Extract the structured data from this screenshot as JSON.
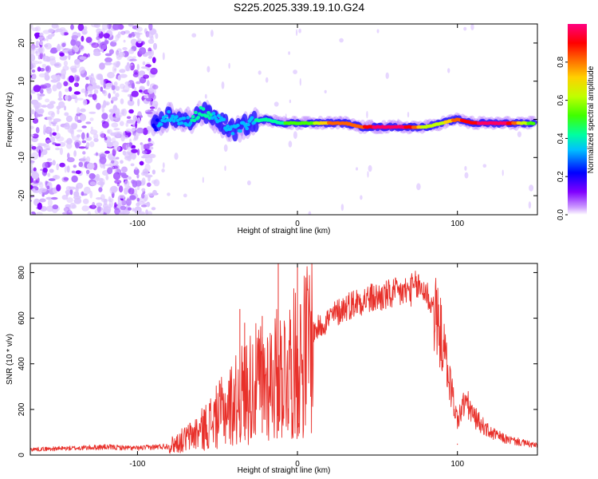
{
  "figure": {
    "title": "S225.2025.339.19.10.G24"
  },
  "chart_data": [
    {
      "type": "heatmap",
      "xlabel": "Height of straight line (km)",
      "ylabel": "Frequency (Hz)",
      "xlim": [
        -167,
        150
      ],
      "ylim": [
        -25,
        25
      ],
      "xticks": [
        -100,
        0,
        100
      ],
      "yticks": [
        -20,
        -10,
        0,
        10,
        20
      ],
      "colorbar": {
        "label": "Normalized spectral amplitude",
        "range": [
          0,
          1
        ],
        "ticks": [
          0.0,
          0.2,
          0.4,
          0.6,
          0.8
        ],
        "colormap": [
          "#cc99ff",
          "#8000ff",
          "#0000ff",
          "#00c0ff",
          "#00ffa0",
          "#40ff00",
          "#c0ff00",
          "#ffd000",
          "#ff6000",
          "#ff0000",
          "#ff0060",
          "#ff0090"
        ]
      },
      "ridge": {
        "x": [
          -90,
          -80,
          -70,
          -60,
          -50,
          -40,
          -30,
          -20,
          -10,
          0,
          10,
          20,
          30,
          40,
          50,
          60,
          70,
          80,
          90,
          100,
          110,
          120,
          130,
          140,
          148
        ],
        "frequency": [
          -2,
          1,
          -1,
          2,
          0,
          -3,
          -1,
          0,
          -1,
          -1,
          -1,
          -1,
          -1,
          -2,
          -2,
          -2,
          -2,
          -2,
          -1,
          0,
          -1,
          -1,
          -1,
          -1,
          -1
        ],
        "amplitude": [
          0.2,
          0.3,
          0.3,
          0.35,
          0.3,
          0.3,
          0.3,
          0.35,
          0.4,
          0.45,
          0.5,
          0.7,
          0.7,
          0.75,
          0.9,
          0.9,
          0.85,
          0.5,
          0.55,
          0.75,
          0.85,
          0.9,
          0.9,
          0.6,
          0.4
        ]
      },
      "noise_region_x": [
        -167,
        -85
      ]
    },
    {
      "type": "line",
      "xlabel": "Height of straight line (km)",
      "ylabel": "SNR (10 * v/v)",
      "xlim": [
        -167,
        150
      ],
      "ylim": [
        0,
        840
      ],
      "xticks": [
        -100,
        0,
        100
      ],
      "yticks": [
        0,
        200,
        400,
        600,
        800
      ],
      "color": "#e8302a",
      "envelope": {
        "x": [
          -167,
          -140,
          -120,
          -100,
          -80,
          -70,
          -60,
          -50,
          -40,
          -30,
          -20,
          -10,
          -5,
          0,
          5,
          10,
          20,
          30,
          40,
          50,
          60,
          70,
          75,
          80,
          85,
          90,
          95,
          100,
          105,
          110,
          120,
          130,
          140,
          150
        ],
        "y": [
          25,
          30,
          35,
          30,
          40,
          70,
          110,
          170,
          230,
          300,
          330,
          360,
          390,
          400,
          450,
          540,
          600,
          650,
          680,
          690,
          705,
          720,
          740,
          720,
          640,
          520,
          330,
          150,
          240,
          170,
          100,
          70,
          55,
          40
        ]
      },
      "spikes": [
        {
          "x": -36,
          "y": 640
        },
        {
          "x": -33,
          "y": 580
        },
        {
          "x": -22,
          "y": 610
        },
        {
          "x": -12,
          "y": 845
        },
        {
          "x": 0,
          "y": 835
        },
        {
          "x": 1,
          "y": 140
        },
        {
          "x": 100,
          "y": 50
        }
      ]
    }
  ]
}
